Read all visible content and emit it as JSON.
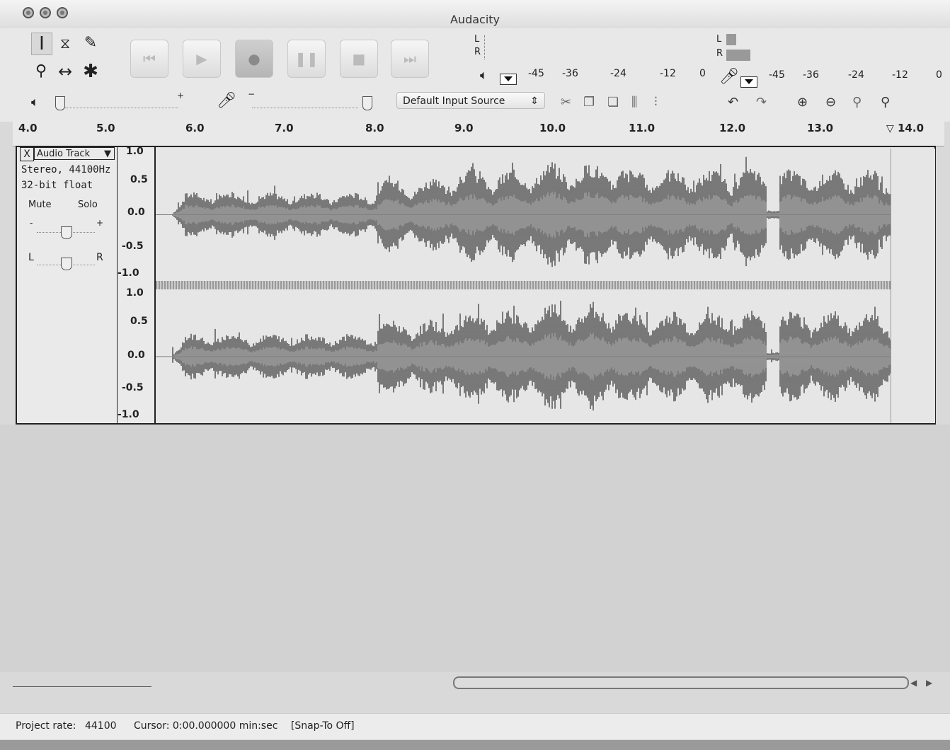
{
  "window": {
    "title": "Audacity"
  },
  "tools": {
    "select": "I",
    "envelope": "⧖",
    "draw": "✎",
    "zoom": "⚲",
    "timeshift": "↔",
    "multi": "✱"
  },
  "transport": {
    "skip_start": "⏮",
    "play": "▶",
    "record": "●",
    "pause": "❚❚",
    "stop": "■",
    "skip_end": "⏭"
  },
  "meters": {
    "left_channel": "L",
    "right_channel": "R",
    "scale": [
      "-45",
      "-36",
      "-24",
      "-12",
      "0"
    ]
  },
  "mixer": {
    "plus": "+",
    "minus": "−"
  },
  "input_source": {
    "label": "Default Input Source",
    "arrow": "⇕"
  },
  "ruler": {
    "ticks": [
      "4.0",
      "5.0",
      "6.0",
      "7.0",
      "8.0",
      "9.0",
      "10.0",
      "11.0",
      "12.0",
      "13.0",
      "14.0"
    ]
  },
  "track": {
    "close": "X",
    "name": "Audio Track",
    "format": "Stereo, 44100Hz",
    "bit_depth": "32-bit float",
    "mute": "Mute",
    "solo": "Solo",
    "gain_minus": "-",
    "gain_plus": "+",
    "pan_left": "L",
    "pan_right": "R"
  },
  "vertical_ruler": {
    "labels": [
      "1.0",
      "0.5",
      "0.0",
      "-0.5",
      "-1.0"
    ]
  },
  "status": {
    "project_rate_label": "Project rate:",
    "project_rate_value": "44100",
    "cursor": "Cursor: 0:00.000000 min:sec",
    "snap": "[Snap-To Off]"
  },
  "colors": {
    "waveform": "#4a4a4a",
    "waveform_rms": "#8a8a8a",
    "background": "#d9d9d9"
  }
}
